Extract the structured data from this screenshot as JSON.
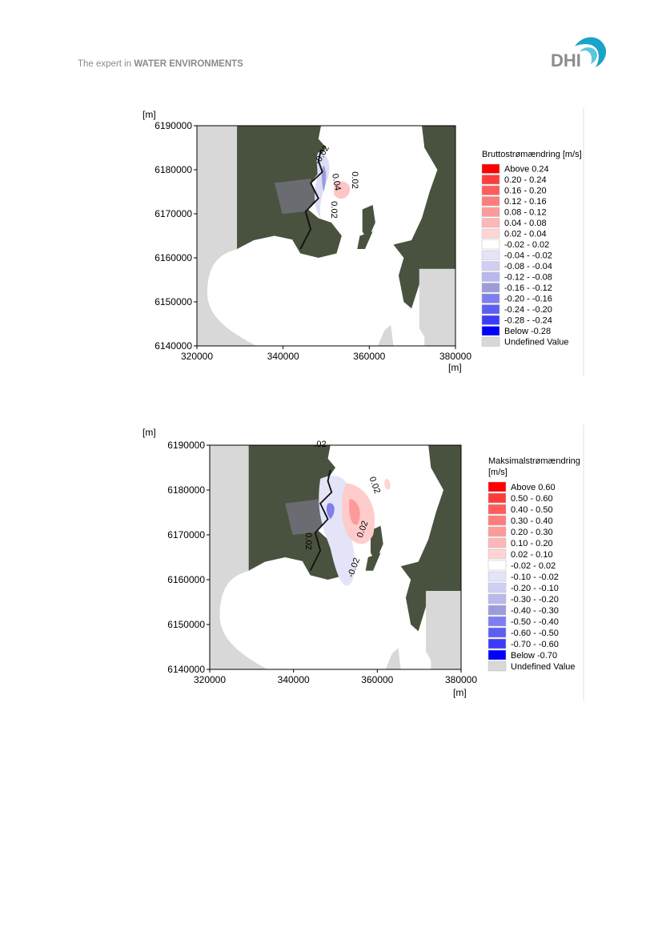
{
  "header": {
    "tagline": "The expert in",
    "tagline_bold": "WATER ENVIRONMENTS",
    "logo": "DHI"
  },
  "figures": [
    {
      "y_unit": "[m]",
      "x_unit": "[m]",
      "yticks": [
        6190000,
        6180000,
        6170000,
        6160000,
        6150000,
        6140000
      ],
      "xticks": [
        320000,
        340000,
        360000,
        380000
      ],
      "legend_title": [
        "Bruttostrømændring [m/s]"
      ],
      "legend": [
        {
          "label": "Above  0.24",
          "color": "#ff0000"
        },
        {
          "label": "0.20 -  0.24",
          "color": "#ff3c3c"
        },
        {
          "label": "0.16 -  0.20",
          "color": "#ff5c5c"
        },
        {
          "label": "0.12 -  0.16",
          "color": "#ff7c7c"
        },
        {
          "label": "0.08 -  0.12",
          "color": "#ff9a9a"
        },
        {
          "label": "0.04 -  0.08",
          "color": "#ffb6b6"
        },
        {
          "label": "0.02 -  0.04",
          "color": "#ffd4d4"
        },
        {
          "label": "-0.02 -  0.02",
          "color": "#ffffff"
        },
        {
          "label": "-0.04 - -0.02",
          "color": "#e4e4f8"
        },
        {
          "label": "-0.08 - -0.04",
          "color": "#cfcff4"
        },
        {
          "label": "-0.12 - -0.08",
          "color": "#b8b8ee"
        },
        {
          "label": "-0.16 - -0.12",
          "color": "#9c9cdc"
        },
        {
          "label": "-0.20 - -0.16",
          "color": "#7e7ef2"
        },
        {
          "label": "-0.24 - -0.20",
          "color": "#5e5ef4"
        },
        {
          "label": "-0.28 - -0.24",
          "color": "#3c3cf8"
        },
        {
          "label": "Below  -0.28",
          "color": "#0000ff"
        },
        {
          "label": "Undefined Value",
          "color": "#d8d8d8"
        }
      ],
      "contour_labels": [
        "-0.02",
        "0.02",
        "0.04",
        "0.02"
      ]
    },
    {
      "y_unit": "[m]",
      "x_unit": "[m]",
      "yticks": [
        6190000,
        6180000,
        6170000,
        6160000,
        6150000,
        6140000
      ],
      "xticks": [
        320000,
        340000,
        360000,
        380000
      ],
      "legend_title": [
        "Maksimalstrømændring",
        "[m/s]"
      ],
      "legend": [
        {
          "label": "Above  0.60",
          "color": "#ff0000"
        },
        {
          "label": "0.50 -  0.60",
          "color": "#ff3c3c"
        },
        {
          "label": "0.40 -  0.50",
          "color": "#ff5c5c"
        },
        {
          "label": "0.30 -  0.40",
          "color": "#ff7c7c"
        },
        {
          "label": "0.20 -  0.30",
          "color": "#ff9a9a"
        },
        {
          "label": "0.10 -  0.20",
          "color": "#ffb6b6"
        },
        {
          "label": "0.02 -  0.10",
          "color": "#ffd4d4"
        },
        {
          "label": "-0.02 -  0.02",
          "color": "#ffffff"
        },
        {
          "label": "-0.10 - -0.02",
          "color": "#e4e4f8"
        },
        {
          "label": "-0.20 - -0.10",
          "color": "#cfcff4"
        },
        {
          "label": "-0.30 - -0.20",
          "color": "#b8b8ee"
        },
        {
          "label": "-0.40 - -0.30",
          "color": "#9c9cdc"
        },
        {
          "label": "-0.50 - -0.40",
          "color": "#7e7ef2"
        },
        {
          "label": "-0.60 - -0.50",
          "color": "#5e5ef4"
        },
        {
          "label": "-0.70 - -0.60",
          "color": "#3c3cf8"
        },
        {
          "label": "Below  -0.70",
          "color": "#0000ff"
        },
        {
          "label": "Undefined Value",
          "color": "#d8d8d8"
        }
      ],
      "contour_labels": [
        ".02",
        "0.02",
        "0.02",
        "0.02",
        "-0.02"
      ]
    }
  ]
}
